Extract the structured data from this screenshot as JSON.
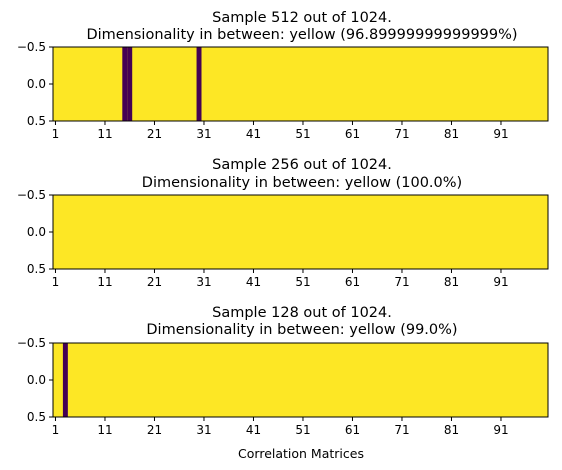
{
  "colors": {
    "high": "#fde725",
    "low": "#440154"
  },
  "chart_data": [
    {
      "type": "heatmap",
      "title_line1": "Sample 512 out of 1024.",
      "title_line2": "Dimensionality in between: yellow (96.89999999999999%)",
      "xlim": [
        0.5,
        100.5
      ],
      "ylim": [
        0.5,
        -0.5
      ],
      "ytick_labels": [
        "−0.5",
        "0.0",
        "0.5"
      ],
      "xtick_labels": [
        "1",
        "11",
        "21",
        "31",
        "41",
        "51",
        "61",
        "71",
        "81",
        "91"
      ],
      "xlabel": "",
      "low_columns": [
        15,
        16,
        30
      ]
    },
    {
      "type": "heatmap",
      "title_line1": "Sample 256 out of 1024.",
      "title_line2": "Dimensionality in between: yellow (100.0%)",
      "xlim": [
        0.5,
        100.5
      ],
      "ylim": [
        0.5,
        -0.5
      ],
      "ytick_labels": [
        "−0.5",
        "0.0",
        "0.5"
      ],
      "xtick_labels": [
        "1",
        "11",
        "21",
        "31",
        "41",
        "51",
        "61",
        "71",
        "81",
        "91"
      ],
      "xlabel": "",
      "low_columns": []
    },
    {
      "type": "heatmap",
      "title_line1": "Sample 128 out of 1024.",
      "title_line2": "Dimensionality in between: yellow (99.0%)",
      "xlim": [
        0.5,
        100.5
      ],
      "ylim": [
        0.5,
        -0.5
      ],
      "ytick_labels": [
        "−0.5",
        "0.0",
        "0.5"
      ],
      "xtick_labels": [
        "1",
        "11",
        "21",
        "31",
        "41",
        "51",
        "61",
        "71",
        "81",
        "91"
      ],
      "xlabel": "Correlation Matrices",
      "low_columns": [
        3
      ]
    }
  ]
}
